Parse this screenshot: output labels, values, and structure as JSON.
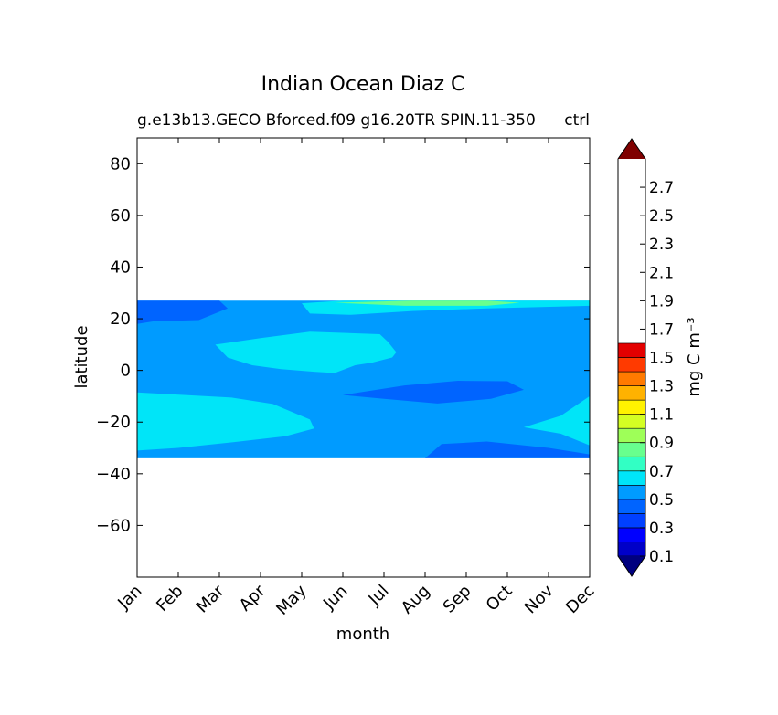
{
  "chart_data": {
    "type": "heatmap",
    "title": "Indian Ocean Diaz C",
    "subtitle_left": "g.e13b13.GECO Bforced.f09 g16.20TR SPIN.11-350",
    "subtitle_right": "ctrl",
    "xlabel": "month",
    "ylabel": "latitude",
    "x_categories": [
      "Jan",
      "Feb",
      "Mar",
      "Apr",
      "May",
      "Jun",
      "Jul",
      "Aug",
      "Sep",
      "Oct",
      "Nov",
      "Dec"
    ],
    "xlim": [
      0,
      11
    ],
    "ylim": [
      -80,
      90
    ],
    "y_ticks": [
      80,
      60,
      40,
      20,
      0,
      -20,
      -40,
      -60
    ],
    "data_lat_range": [
      -34,
      27
    ],
    "colorbar": {
      "label": "mg C m⁻³",
      "levels": [
        0,
        0.1,
        0.2,
        0.3,
        0.4,
        0.5,
        0.6,
        0.7,
        0.8,
        0.9,
        1.0,
        1.1,
        1.2,
        1.3,
        1.4,
        1.5,
        1.6,
        1.7,
        1.8,
        1.9,
        2.0,
        2.1,
        2.2,
        2.3,
        2.4,
        2.5,
        2.6,
        2.7,
        2.8,
        2.9,
        3.0
      ],
      "tick_labels": [
        "0.1",
        "0.3",
        "0.5",
        "0.7",
        "0.9",
        "1.1",
        "1.3",
        "1.5",
        "1.7",
        "1.9",
        "2.1",
        "2.3",
        "2.5",
        "2.7"
      ],
      "colors": [
        "#00007f",
        "#0000c8",
        "#0000ff",
        "#0040ff",
        "#0064ff",
        "#009bff",
        "#00e5f8",
        "#32ffc4",
        "#68ff8e",
        "#9eff58",
        "#d4ff23",
        "#fff200",
        "#ffb200",
        "#ff7a00",
        "#ff3a00",
        "#e30000",
        "#7f0000"
      ],
      "extend": "both"
    },
    "field": {
      "background_value": 0.5,
      "regions": [
        {
          "value": 0.4,
          "points": [
            [
              0,
              27
            ],
            [
              2,
              27
            ],
            [
              2.2,
              24
            ],
            [
              1.5,
              19.5
            ],
            [
              0.4,
              19
            ],
            [
              0,
              18
            ]
          ]
        },
        {
          "value": 0.6,
          "points": [
            [
              1.9,
              10
            ],
            [
              3,
              12.5
            ],
            [
              4.2,
              15
            ],
            [
              5.9,
              14
            ],
            [
              6.1,
              11
            ],
            [
              6.3,
              7
            ],
            [
              6.2,
              5
            ],
            [
              5.7,
              3
            ],
            [
              5.3,
              2
            ],
            [
              4.8,
              -1
            ],
            [
              4.3,
              -0.5
            ],
            [
              3.5,
              0.5
            ],
            [
              2.8,
              2
            ],
            [
              2.2,
              5
            ]
          ]
        },
        {
          "value": 0.6,
          "points": [
            [
              4,
              26
            ],
            [
              5,
              27
            ],
            [
              8,
              27
            ],
            [
              11,
              27
            ],
            [
              11,
              25
            ],
            [
              8.5,
              24
            ],
            [
              6.7,
              23
            ],
            [
              5.2,
              21.5
            ],
            [
              4.2,
              22
            ]
          ]
        },
        {
          "value": 0.8,
          "points": [
            [
              4.8,
              26.2
            ],
            [
              6.7,
              27
            ],
            [
              8.5,
              27
            ],
            [
              9.3,
              26.2
            ],
            [
              8.5,
              25
            ],
            [
              6.5,
              25
            ]
          ]
        },
        {
          "value": 0.6,
          "points": [
            [
              0,
              -8.5
            ],
            [
              2.3,
              -10.5
            ],
            [
              3.3,
              -13
            ],
            [
              4.2,
              -19
            ],
            [
              4.3,
              -22.5
            ],
            [
              3.6,
              -25.5
            ],
            [
              2.2,
              -28
            ],
            [
              1,
              -30
            ],
            [
              0,
              -31
            ]
          ]
        },
        {
          "value": 0.6,
          "points": [
            [
              11,
              -10
            ],
            [
              10.3,
              -17.5
            ],
            [
              9.4,
              -22
            ],
            [
              10.3,
              -24.5
            ],
            [
              11,
              -29
            ]
          ]
        },
        {
          "value": 0.4,
          "points": [
            [
              5,
              -9.5
            ],
            [
              6.5,
              -5.8
            ],
            [
              7.8,
              -4
            ],
            [
              9,
              -4.2
            ],
            [
              9.4,
              -7.5
            ],
            [
              8.6,
              -11
            ],
            [
              7.3,
              -12.8
            ],
            [
              6,
              -11
            ]
          ]
        },
        {
          "value": 0.4,
          "points": [
            [
              7,
              -34
            ],
            [
              7.4,
              -28.5
            ],
            [
              8.5,
              -27.5
            ],
            [
              10,
              -30
            ],
            [
              11,
              -32.5
            ],
            [
              11,
              -34
            ]
          ]
        }
      ]
    }
  }
}
